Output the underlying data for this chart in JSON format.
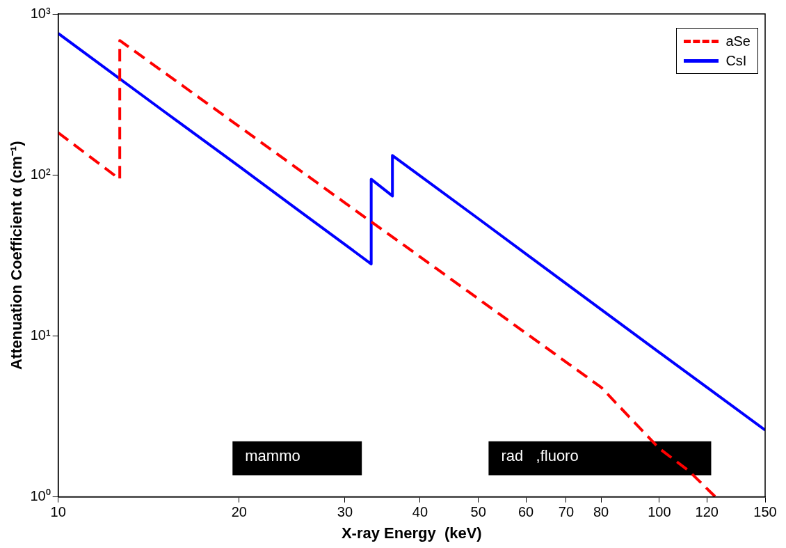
{
  "chart_data": {
    "type": "line",
    "xlabel": "X-ray Energy  (keV)",
    "ylabel": "Attenuation Coefficient α (cm⁻¹)",
    "log": "xy",
    "xlim": [
      10,
      150
    ],
    "ylim": [
      1,
      1000
    ],
    "xticks": [
      10,
      20,
      30,
      40,
      50,
      60,
      70,
      80,
      100,
      120,
      150
    ],
    "yticks": [
      {
        "value": 1,
        "label": "10⁰"
      },
      {
        "value": 10,
        "label": "10¹"
      },
      {
        "value": 100,
        "label": "10²"
      },
      {
        "value": 1000,
        "label": "10³"
      }
    ],
    "grid": false,
    "legend": "top right",
    "marker": "none",
    "series": [
      {
        "name": "aSe",
        "color": "#ff0000",
        "line_style": "dashed",
        "x": [
          10,
          12.66,
          12.66,
          20,
          30,
          40,
          50,
          60,
          80,
          100,
          112,
          124
        ],
        "values": [
          183,
          94,
          684,
          200,
          67,
          31,
          17,
          10.4,
          4.8,
          2.0,
          1.45,
          1.0
        ]
      },
      {
        "name": "CsI",
        "color": "#0000ff",
        "line_style": "solid",
        "x": [
          10,
          15,
          20,
          25,
          33.17,
          33.17,
          35.98,
          35.98,
          50,
          70,
          100,
          150
        ],
        "values": [
          757,
          248,
          113,
          61,
          28,
          94,
          74,
          132,
          53.5,
          21.1,
          7.9,
          2.6
        ]
      }
    ],
    "bands": [
      {
        "axis": "x",
        "from": 19.5,
        "to": 32,
        "label": "mammo",
        "color": "#000000"
      },
      {
        "axis": "x",
        "from": 52,
        "to": 122,
        "label": "rad   ,fluoro",
        "color": "#000000"
      }
    ]
  }
}
